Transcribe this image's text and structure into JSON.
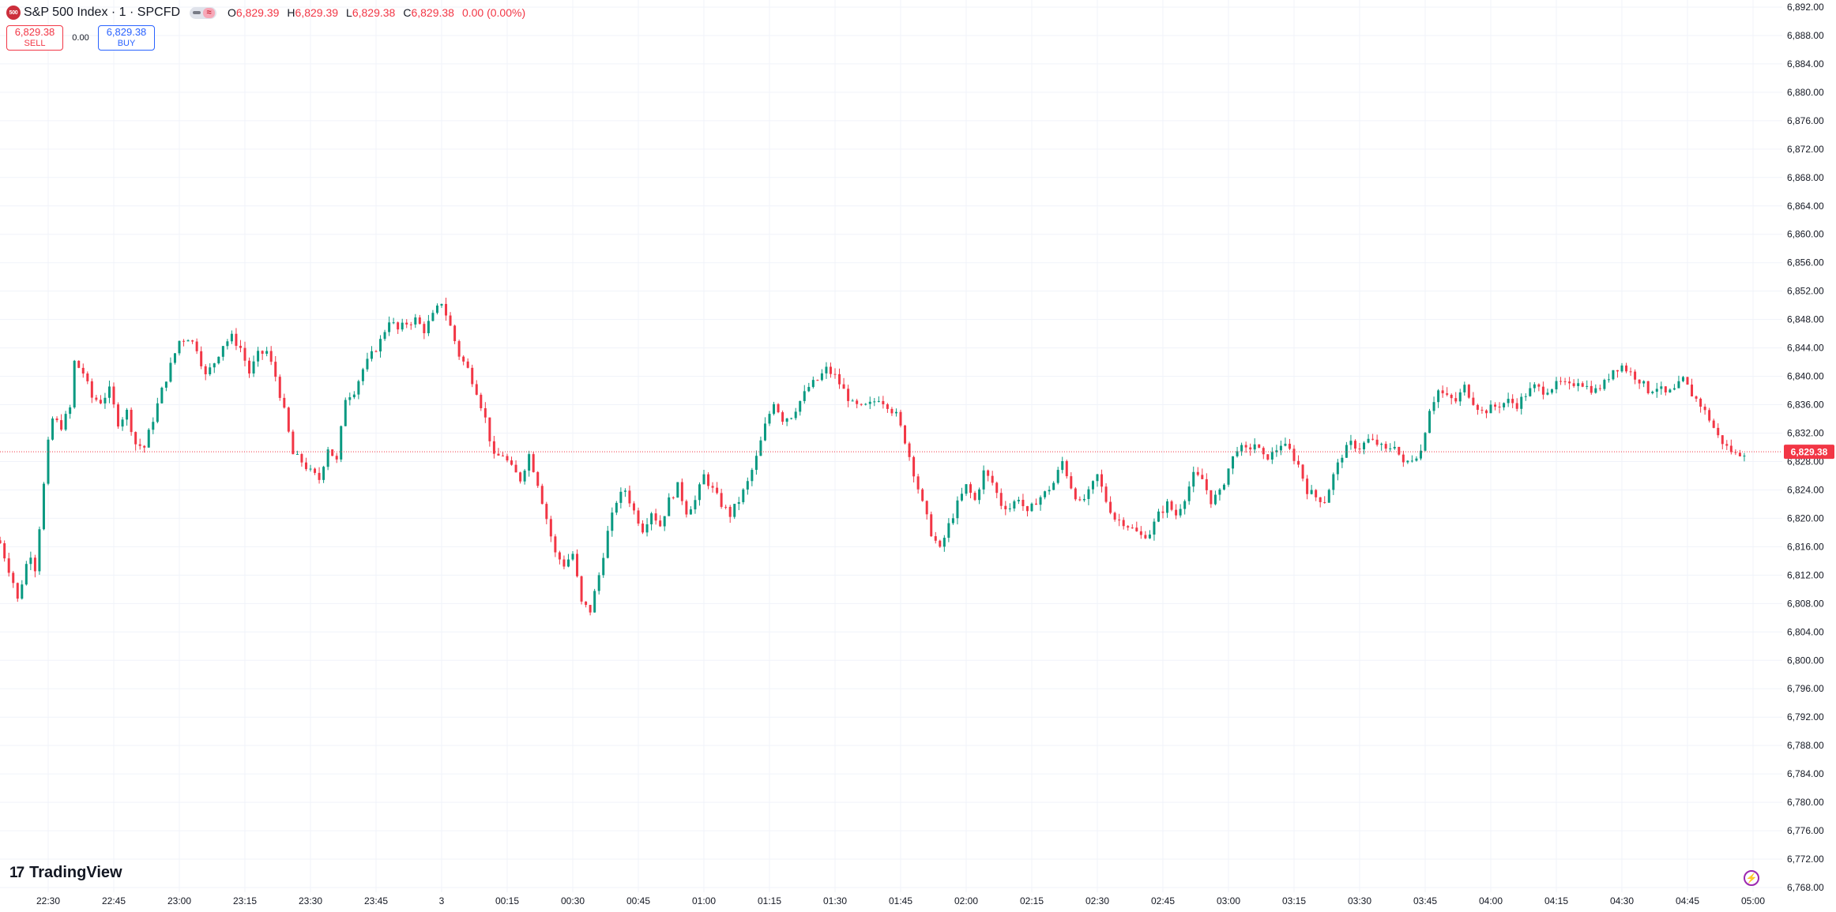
{
  "header": {
    "symbol_badge": "500",
    "title": "S&P 500 Index · 1 · SPCFD",
    "toggle_glyph": "≈",
    "ohlc": [
      {
        "k": "O",
        "v": "6,829.39"
      },
      {
        "k": "H",
        "v": "6,829.39"
      },
      {
        "k": "L",
        "v": "6,829.38"
      },
      {
        "k": "C",
        "v": "6,829.38"
      },
      {
        "k": "",
        "v": "0.00 (0.00%)"
      }
    ]
  },
  "trade": {
    "sell_price": "6,829.38",
    "sell_label": "SELL",
    "spread": "0.00",
    "buy_price": "6,829.38",
    "buy_label": "BUY"
  },
  "brand": {
    "mark": "17",
    "name": "TradingView"
  },
  "colors": {
    "up": "#089981",
    "down": "#f23645",
    "grid": "#f0f3fa",
    "price_line": "#f23645"
  },
  "chart_data": {
    "type": "candlestick",
    "title": "S&P 500 Index · 1 · SPCFD",
    "interval": "1 minute",
    "last_price": 6829.38,
    "last_price_label": "6,829.38",
    "ylim": [
      6766,
      6892
    ],
    "y_ticks": [
      "6,892.00",
      "6,888.00",
      "6,884.00",
      "6,880.00",
      "6,876.00",
      "6,872.00",
      "6,868.00",
      "6,864.00",
      "6,860.00",
      "6,856.00",
      "6,852.00",
      "6,848.00",
      "6,844.00",
      "6,840.00",
      "6,836.00",
      "6,832.00",
      "6,828.00",
      "6,824.00",
      "6,820.00",
      "6,816.00",
      "6,812.00",
      "6,808.00",
      "6,804.00",
      "6,800.00",
      "6,796.00",
      "6,792.00",
      "6,788.00",
      "6,784.00",
      "6,780.00",
      "6,776.00",
      "6,772.00",
      "6,768.00"
    ],
    "x_ticks": [
      "22:30",
      "22:45",
      "23:00",
      "23:15",
      "23:30",
      "23:45",
      "3",
      "00:15",
      "00:30",
      "00:45",
      "01:00",
      "01:15",
      "01:30",
      "01:45",
      "02:00",
      "02:15",
      "02:30",
      "02:45",
      "03:00",
      "03:15",
      "03:30",
      "03:45",
      "04:00",
      "04:15",
      "04:30",
      "04:45",
      "05:00"
    ],
    "grid": true,
    "close_path": [
      [
        "22:19",
        6816.5
      ],
      [
        "22:22",
        6811.0
      ],
      [
        "22:23",
        6808.5
      ],
      [
        "22:25",
        6813.5
      ],
      [
        "22:26",
        6815.0
      ],
      [
        "22:27",
        6813.0
      ],
      [
        "22:30",
        6830.5
      ],
      [
        "22:31",
        6834.0
      ],
      [
        "22:33",
        6833.0
      ],
      [
        "22:35",
        6835.5
      ],
      [
        "22:36",
        6842.0
      ],
      [
        "22:38",
        6840.5
      ],
      [
        "22:40",
        6837.0
      ],
      [
        "22:42",
        6836.5
      ],
      [
        "22:44",
        6838.0
      ],
      [
        "22:46",
        6833.5
      ],
      [
        "22:48",
        6835.0
      ],
      [
        "22:50",
        6830.5
      ],
      [
        "22:52",
        6830.0
      ],
      [
        "22:54",
        6834.0
      ],
      [
        "22:56",
        6838.0
      ],
      [
        "22:58",
        6841.5
      ],
      [
        "23:00",
        6845.0
      ],
      [
        "23:02",
        6845.5
      ],
      [
        "23:04",
        6844.0
      ],
      [
        "23:06",
        6840.0
      ],
      [
        "23:08",
        6842.0
      ],
      [
        "23:10",
        6844.5
      ],
      [
        "23:12",
        6845.5
      ],
      [
        "23:14",
        6844.0
      ],
      [
        "23:16",
        6840.5
      ],
      [
        "23:18",
        6843.0
      ],
      [
        "23:20",
        6843.5
      ],
      [
        "23:22",
        6840.0
      ],
      [
        "23:24",
        6835.0
      ],
      [
        "23:25",
        6832.0
      ],
      [
        "23:26",
        6829.0
      ],
      [
        "23:28",
        6828.0
      ],
      [
        "23:30",
        6826.5
      ],
      [
        "23:32",
        6825.5
      ],
      [
        "23:34",
        6830.0
      ],
      [
        "23:36",
        6828.0
      ],
      [
        "23:38",
        6837.0
      ],
      [
        "23:40",
        6838.0
      ],
      [
        "23:42",
        6841.0
      ],
      [
        "23:44",
        6843.0
      ],
      [
        "23:46",
        6845.0
      ],
      [
        "23:48",
        6848.0
      ],
      [
        "23:50",
        6846.5
      ],
      [
        "23:52",
        6847.5
      ],
      [
        "23:54",
        6848.0
      ],
      [
        "23:56",
        6846.5
      ],
      [
        "23:58",
        6848.5
      ],
      [
        "00:00",
        6850.5
      ],
      [
        "00:02",
        6847.0
      ],
      [
        "00:04",
        6843.0
      ],
      [
        "00:06",
        6841.0
      ],
      [
        "00:08",
        6838.0
      ],
      [
        "00:10",
        6834.0
      ],
      [
        "00:12",
        6828.5
      ],
      [
        "00:14",
        6829.0
      ],
      [
        "00:16",
        6827.0
      ],
      [
        "00:18",
        6825.5
      ],
      [
        "00:20",
        6829.0
      ],
      [
        "00:22",
        6825.0
      ],
      [
        "00:24",
        6820.0
      ],
      [
        "00:26",
        6815.0
      ],
      [
        "00:28",
        6813.5
      ],
      [
        "00:30",
        6815.0
      ],
      [
        "00:32",
        6808.0
      ],
      [
        "00:34",
        6807.0
      ],
      [
        "00:36",
        6812.0
      ],
      [
        "00:38",
        6818.0
      ],
      [
        "00:40",
        6822.5
      ],
      [
        "00:42",
        6824.0
      ],
      [
        "00:44",
        6821.0
      ],
      [
        "00:46",
        6818.5
      ],
      [
        "00:48",
        6821.0
      ],
      [
        "00:50",
        6819.0
      ],
      [
        "00:52",
        6822.5
      ],
      [
        "00:54",
        6824.5
      ],
      [
        "00:56",
        6821.0
      ],
      [
        "00:58",
        6822.5
      ],
      [
        "01:00",
        6826.0
      ],
      [
        "01:02",
        6824.0
      ],
      [
        "01:04",
        6822.0
      ],
      [
        "01:06",
        6820.5
      ],
      [
        "01:08",
        6822.5
      ],
      [
        "01:10",
        6825.0
      ],
      [
        "01:12",
        6828.5
      ],
      [
        "01:14",
        6833.0
      ],
      [
        "01:16",
        6836.5
      ],
      [
        "01:18",
        6834.0
      ],
      [
        "01:20",
        6834.5
      ],
      [
        "01:22",
        6836.5
      ],
      [
        "01:24",
        6838.5
      ],
      [
        "01:26",
        6839.5
      ],
      [
        "01:28",
        6841.0
      ],
      [
        "01:30",
        6840.0
      ],
      [
        "01:32",
        6838.0
      ],
      [
        "01:34",
        6836.0
      ],
      [
        "01:36",
        6835.5
      ],
      [
        "01:38",
        6836.0
      ],
      [
        "01:40",
        6837.0
      ],
      [
        "01:42",
        6836.0
      ],
      [
        "01:44",
        6834.5
      ],
      [
        "01:46",
        6831.0
      ],
      [
        "01:48",
        6826.5
      ],
      [
        "01:50",
        6822.0
      ],
      [
        "01:52",
        6818.0
      ],
      [
        "01:54",
        6815.5
      ],
      [
        "01:56",
        6819.0
      ],
      [
        "01:58",
        6822.0
      ],
      [
        "02:00",
        6824.5
      ],
      [
        "02:02",
        6822.5
      ],
      [
        "02:04",
        6826.5
      ],
      [
        "02:06",
        6825.0
      ],
      [
        "02:08",
        6822.0
      ],
      [
        "02:10",
        6821.5
      ],
      [
        "02:12",
        6823.0
      ],
      [
        "02:14",
        6820.5
      ],
      [
        "02:16",
        6822.5
      ],
      [
        "02:18",
        6823.5
      ],
      [
        "02:20",
        6825.0
      ],
      [
        "02:22",
        6828.0
      ],
      [
        "02:24",
        6824.5
      ],
      [
        "02:26",
        6822.0
      ],
      [
        "02:28",
        6823.5
      ],
      [
        "02:30",
        6826.0
      ],
      [
        "02:32",
        6822.5
      ],
      [
        "02:34",
        6820.0
      ],
      [
        "02:36",
        6819.5
      ],
      [
        "02:38",
        6818.5
      ],
      [
        "02:40",
        6817.5
      ],
      [
        "02:42",
        6818.0
      ],
      [
        "02:44",
        6820.5
      ],
      [
        "02:46",
        6822.0
      ],
      [
        "02:48",
        6820.5
      ],
      [
        "02:50",
        6823.0
      ],
      [
        "02:52",
        6826.0
      ],
      [
        "02:54",
        6825.5
      ],
      [
        "02:56",
        6822.5
      ],
      [
        "02:58",
        6823.5
      ],
      [
        "03:00",
        6827.0
      ],
      [
        "03:02",
        6830.0
      ],
      [
        "03:04",
        6829.5
      ],
      [
        "03:06",
        6830.5
      ],
      [
        "03:08",
        6828.5
      ],
      [
        "03:10",
        6829.0
      ],
      [
        "03:12",
        6830.5
      ],
      [
        "03:14",
        6829.5
      ],
      [
        "03:16",
        6827.5
      ],
      [
        "03:18",
        6824.0
      ],
      [
        "03:20",
        6823.0
      ],
      [
        "03:22",
        6822.5
      ],
      [
        "03:24",
        6826.0
      ],
      [
        "03:26",
        6829.0
      ],
      [
        "03:28",
        6830.5
      ],
      [
        "03:30",
        6830.0
      ],
      [
        "03:32",
        6831.0
      ],
      [
        "03:34",
        6830.5
      ],
      [
        "03:36",
        6829.5
      ],
      [
        "03:38",
        6830.5
      ],
      [
        "03:40",
        6827.5
      ],
      [
        "03:42",
        6828.5
      ],
      [
        "03:44",
        6829.5
      ],
      [
        "03:46",
        6835.5
      ],
      [
        "03:48",
        6838.0
      ],
      [
        "03:50",
        6837.0
      ],
      [
        "03:52",
        6836.5
      ],
      [
        "03:54",
        6838.5
      ],
      [
        "03:56",
        6836.5
      ],
      [
        "03:58",
        6835.0
      ],
      [
        "04:00",
        6835.5
      ],
      [
        "04:02",
        6836.0
      ],
      [
        "04:04",
        6836.5
      ],
      [
        "04:06",
        6836.0
      ],
      [
        "04:08",
        6837.5
      ],
      [
        "04:10",
        6838.5
      ],
      [
        "04:12",
        6838.0
      ],
      [
        "04:14",
        6838.5
      ],
      [
        "04:16",
        6839.0
      ],
      [
        "04:18",
        6838.5
      ],
      [
        "04:20",
        6839.5
      ],
      [
        "04:22",
        6838.5
      ],
      [
        "04:24",
        6838.0
      ],
      [
        "04:26",
        6839.0
      ],
      [
        "04:28",
        6841.0
      ],
      [
        "04:30",
        6841.5
      ],
      [
        "04:32",
        6840.5
      ],
      [
        "04:34",
        6839.5
      ],
      [
        "04:36",
        6838.0
      ],
      [
        "04:38",
        6838.5
      ],
      [
        "04:40",
        6837.5
      ],
      [
        "04:42",
        6838.0
      ],
      [
        "04:44",
        6839.5
      ],
      [
        "04:46",
        6837.5
      ],
      [
        "04:48",
        6836.0
      ],
      [
        "04:50",
        6834.0
      ],
      [
        "04:52",
        6831.5
      ],
      [
        "04:54",
        6830.0
      ],
      [
        "04:56",
        6829.0
      ],
      [
        "04:58",
        6829.38
      ]
    ]
  }
}
